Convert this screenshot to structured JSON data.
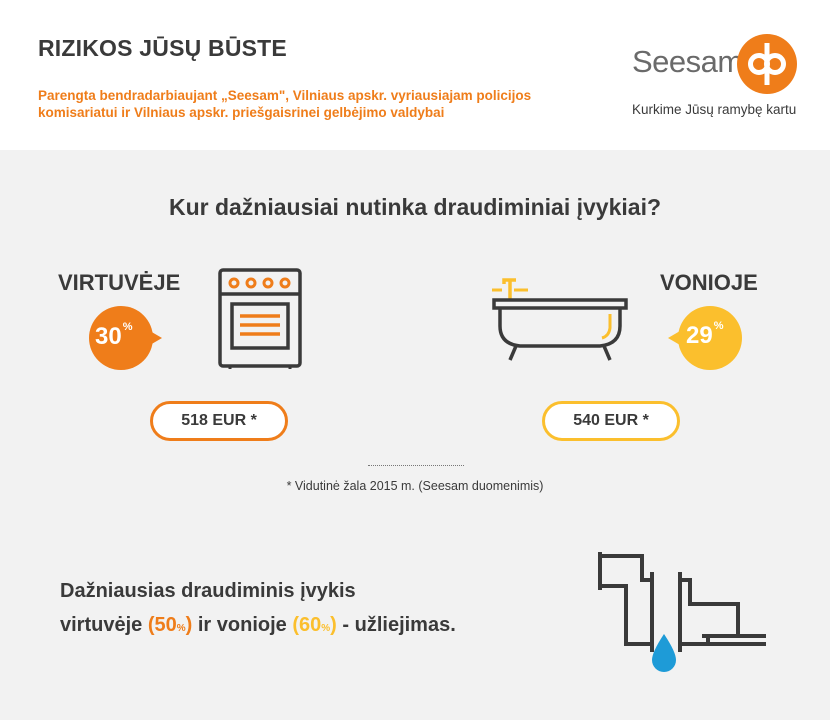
{
  "header": {
    "title": "RIZIKOS JŪSŲ BŪSTE",
    "subtitle_line1": "Parengta bendradarbiaujant „Seesam\", Vilniaus apskr. vyriausiajam policijos",
    "subtitle_line2": "komisariatui ir Vilniaus apskr. priešgaisrinei gelbėjimo valdybai",
    "brand": "Seesam",
    "tagline": "Kurkime Jūsų ramybę kartu"
  },
  "section": {
    "question": "Kur dažniausiai nutinka draudiminiai įvykiai?"
  },
  "kitchen": {
    "label": "VIRTUVĖJE",
    "percent": "30",
    "percent_sign": "%",
    "amount": "518 EUR *",
    "icon": "stove-icon"
  },
  "bath": {
    "label": "VONIOJE",
    "percent": "29",
    "percent_sign": "%",
    "amount": "540 EUR *",
    "icon": "bathtub-icon"
  },
  "footnote": "* Vidutinė žala 2015 m. (Seesam duomenimis)",
  "bottom": {
    "line1": "Dažniausias draudiminis įvykis",
    "line2_a": "virtuvėje ",
    "kitchen_pct_open": "(50",
    "kitchen_pct_sign": "%",
    "kitchen_pct_close": ")",
    "line2_b": " ir vonioje ",
    "bath_pct_open": "(60",
    "bath_pct_sign": "%",
    "bath_pct_close": ")",
    "line2_c": " - ",
    "line2_strong": "užliejimas.",
    "icon": "leaking-pipe-icon"
  },
  "colors": {
    "orange": "#ef7d1a",
    "yellow": "#fbbf2d",
    "dark": "#3a3a3a",
    "grey_bg": "#f2f2f2",
    "water": "#1e9bd7"
  }
}
